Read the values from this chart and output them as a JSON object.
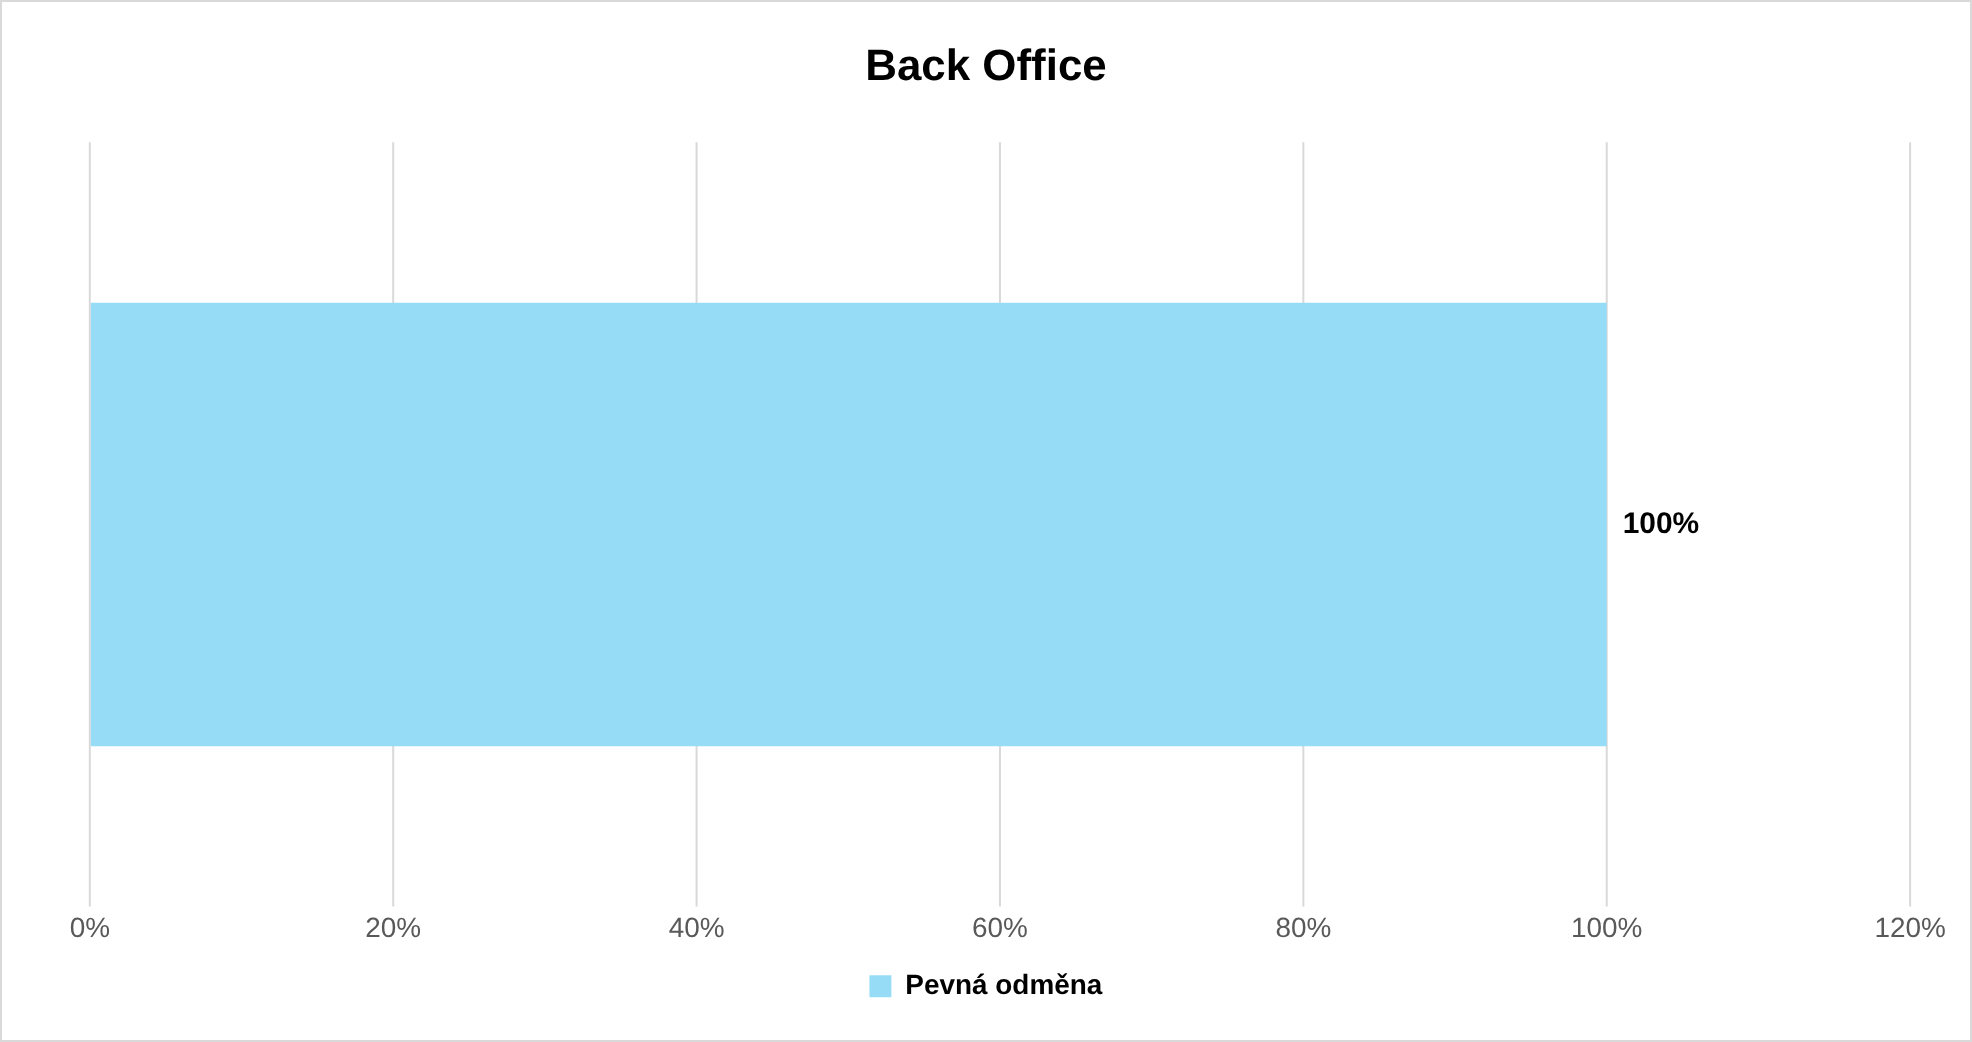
{
  "chart_data": {
    "type": "bar",
    "title": "Back Office",
    "orientation": "horizontal",
    "categories": [
      null
    ],
    "series": [
      {
        "name": "Pevná odměna",
        "color": "#97dcf6",
        "values": [
          100
        ],
        "value_labels": [
          "100%"
        ]
      }
    ],
    "xlim": [
      0,
      120
    ],
    "xticks": [
      {
        "value": 0,
        "label": "0%"
      },
      {
        "value": 20,
        "label": "20%"
      },
      {
        "value": 40,
        "label": "40%"
      },
      {
        "value": 60,
        "label": "60%"
      },
      {
        "value": 80,
        "label": "80%"
      },
      {
        "value": 100,
        "label": "100%"
      },
      {
        "value": 120,
        "label": "120%"
      }
    ],
    "grid": "x",
    "legend": "bottom"
  }
}
